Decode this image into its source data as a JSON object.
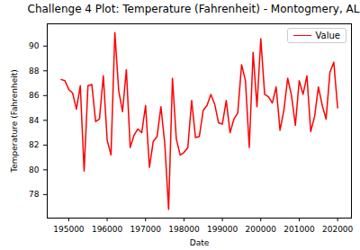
{
  "chart_data": {
    "type": "line",
    "title": "Challenge 4 Plot: Temperature (Fahrenheit) - Montogmery, AL",
    "x_label": "Date",
    "y_label": "Temperature (Fahrenheit)",
    "x": [
      194800,
      194900,
      195000,
      195100,
      195200,
      195300,
      195400,
      195500,
      195600,
      195700,
      195800,
      195900,
      196000,
      196100,
      196200,
      196300,
      196400,
      196500,
      196600,
      196700,
      196800,
      196900,
      197000,
      197100,
      197200,
      197300,
      197400,
      197500,
      197600,
      197700,
      197800,
      197900,
      198000,
      198100,
      198200,
      198300,
      198400,
      198500,
      198600,
      198700,
      198800,
      198900,
      199000,
      199100,
      199200,
      199300,
      199400,
      199500,
      199600,
      199700,
      199800,
      199900,
      200000,
      200100,
      200200,
      200300,
      200400,
      200500,
      200600,
      200700,
      200800,
      200900,
      201000,
      201100,
      201200,
      201300,
      201400,
      201500,
      201600,
      201700,
      201800,
      201900,
      202000
    ],
    "series": [
      {
        "name": "Value",
        "color": "red",
        "values": [
          87.3,
          87.2,
          86.5,
          86.2,
          84.9,
          86.8,
          79.9,
          86.8,
          86.9,
          83.9,
          84.1,
          87.6,
          82.4,
          81.2,
          91.1,
          86.4,
          84.7,
          88.1,
          81.8,
          82.8,
          83.3,
          83.0,
          85.2,
          80.2,
          82.3,
          82.7,
          85.1,
          82.1,
          76.8,
          87.4,
          82.5,
          81.2,
          81.4,
          81.8,
          85.6,
          82.6,
          82.7,
          84.8,
          85.2,
          86.1,
          85.3,
          83.8,
          83.7,
          85.6,
          83.0,
          84.1,
          84.6,
          88.5,
          87.2,
          81.8,
          89.5,
          85.1,
          90.6,
          86.1,
          85.9,
          85.4,
          86.7,
          83.2,
          84.8,
          87.4,
          86.0,
          83.6,
          87.2,
          86.1,
          87.6,
          83.1,
          84.3,
          86.7,
          85.2,
          84.1,
          87.9,
          88.7,
          85.0
        ]
      }
    ],
    "xlim": [
      194440,
      202360
    ],
    "ylim": [
      76.1,
      91.8
    ],
    "xticks": [
      195000,
      196000,
      197000,
      198000,
      199000,
      200000,
      201000,
      202000
    ],
    "yticks": [
      78,
      80,
      82,
      84,
      86,
      88,
      90
    ],
    "legend": "upper right"
  }
}
